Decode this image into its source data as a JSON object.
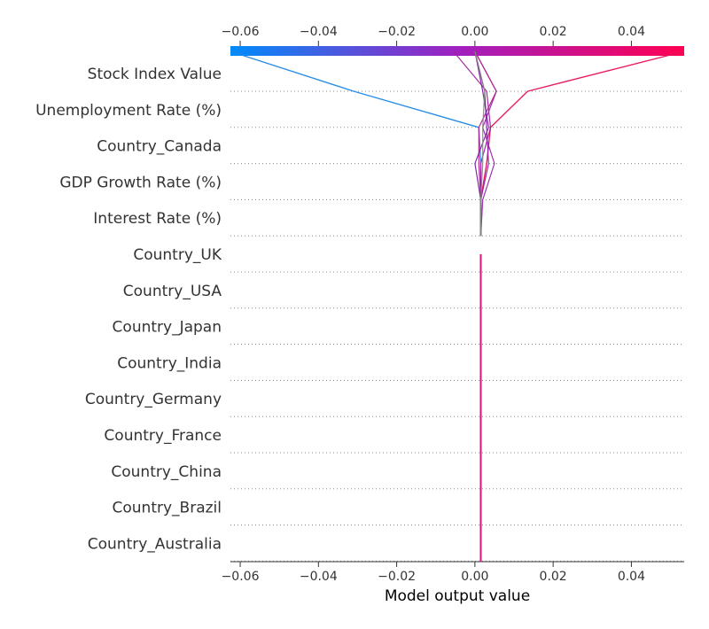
{
  "chart_data": {
    "type": "decision_plot",
    "xlabel": "Model output value",
    "xlim": [
      -0.0625,
      0.0535
    ],
    "xticks": [
      {
        "value": -0.06,
        "label": "−0.06"
      },
      {
        "value": -0.04,
        "label": "−0.04"
      },
      {
        "value": -0.02,
        "label": "−0.02"
      },
      {
        "value": 0.0,
        "label": "0.00"
      },
      {
        "value": 0.02,
        "label": "0.02"
      },
      {
        "value": 0.04,
        "label": "0.04"
      }
    ],
    "features": [
      "Stock Index Value",
      "Unemployment Rate (%)",
      "Country_Canada",
      "GDP Growth Rate (%)",
      "Interest Rate (%)",
      "Country_UK",
      "Country_USA",
      "Country_Japan",
      "Country_India",
      "Country_Germany",
      "Country_France",
      "Country_China",
      "Country_Brazil",
      "Country_Australia"
    ],
    "base_value": 0.0015,
    "colormap": {
      "low": "#008bfb",
      "mid": "#a020c0",
      "high": "#ff0052"
    },
    "grid": "dotted",
    "series": [
      {
        "color": "#1e88e5",
        "values": [
          -0.0625,
          -0.031,
          0.001,
          0.0015,
          0.0015,
          0.0015
        ]
      },
      {
        "color": "#e8125a",
        "values": [
          0.0535,
          0.0135,
          0.004,
          0.003,
          0.0015,
          0.0015
        ]
      },
      {
        "color": "#9b27b0",
        "values": [
          0.0,
          0.0055,
          0.002,
          0.005,
          0.002,
          0.0015
        ]
      },
      {
        "color": "#a020a0",
        "values": [
          -0.0055,
          0.003,
          0.004,
          0.0015,
          0.0015,
          0.0015
        ]
      },
      {
        "color": "#8e24aa",
        "values": [
          0.0,
          0.0025,
          0.003,
          0.0035,
          0.0015,
          0.0015
        ]
      },
      {
        "color": "#b0208c",
        "values": [
          0.0,
          0.0055,
          0.001,
          0.001,
          0.0015,
          0.0015
        ]
      },
      {
        "color": "#7b1fa2",
        "values": [
          0.0,
          0.002,
          0.0035,
          0.0,
          0.0015,
          0.0015
        ]
      },
      {
        "color": "#888888",
        "values": [
          0.0,
          0.0025,
          0.002,
          0.002,
          0.0015,
          0.0015
        ]
      }
    ]
  }
}
